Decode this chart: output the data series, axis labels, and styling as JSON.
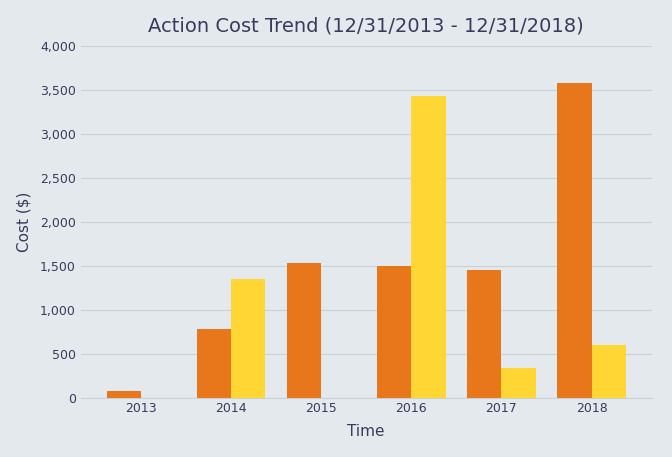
{
  "title": "Action Cost Trend (12/31/2013 - 12/31/2018)",
  "xlabel": "Time",
  "ylabel": "Cost ($)",
  "categories": [
    "2013",
    "2014",
    "2015",
    "2016",
    "2017",
    "2018"
  ],
  "series1_values": [
    75,
    775,
    1525,
    1500,
    1450,
    3575
  ],
  "series2_values": [
    0,
    1350,
    0,
    3425,
    335,
    600
  ],
  "color1": "#E8761A",
  "color2": "#FFD633",
  "background_color": "#E4E9EE",
  "ylim": [
    0,
    4000
  ],
  "yticks": [
    0,
    500,
    1000,
    1500,
    2000,
    2500,
    3000,
    3500,
    4000
  ],
  "title_fontsize": 14,
  "axis_label_fontsize": 11,
  "tick_fontsize": 9,
  "bar_width": 0.38,
  "grid_color": "#C8D0D8",
  "title_color": "#3A3A5C",
  "label_color": "#3A3A5C",
  "tick_color": "#3A3A5C"
}
